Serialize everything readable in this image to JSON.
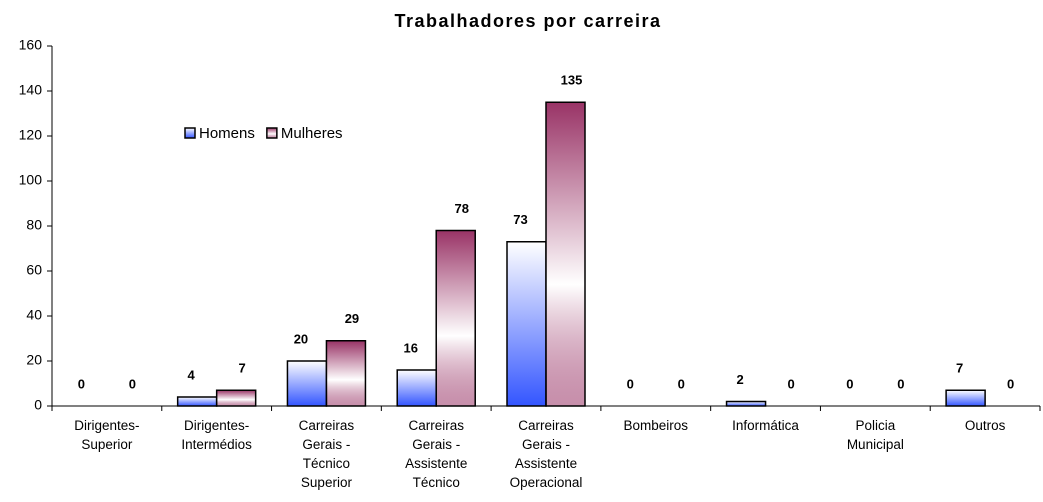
{
  "chart_data": {
    "type": "bar",
    "title": "Trabalhadores por carreira",
    "categories": [
      "Dirigentes-\nSuperior",
      "Dirigentes-\nIntermédios",
      "Carreiras\nGerais -\nTécnico\nSuperior",
      "Carreiras\nGerais -\nAssistente\nTécnico",
      "Carreiras\nGerais -\nAssistente\nOperacional",
      "Bombeiros",
      "Informática",
      "Policia\nMunicipal",
      "Outros"
    ],
    "series": [
      {
        "name": "Homens",
        "color": "#3355ff",
        "values": [
          0,
          4,
          20,
          16,
          73,
          0,
          2,
          0,
          7
        ]
      },
      {
        "name": "Mulheres",
        "color": "#993366",
        "values": [
          0,
          7,
          29,
          78,
          135,
          0,
          0,
          0,
          0
        ]
      }
    ],
    "ylim": [
      0,
      160
    ],
    "yticks": [
      0,
      20,
      40,
      60,
      80,
      100,
      120,
      140,
      160
    ],
    "grid": false,
    "legend": "upper left"
  }
}
